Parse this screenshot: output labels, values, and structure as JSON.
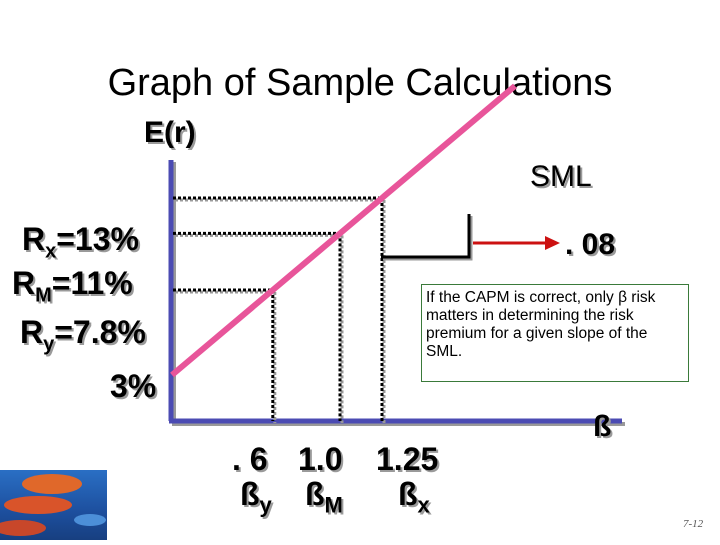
{
  "title": "Graph of Sample Calculations",
  "chart_data": {
    "type": "line",
    "title": "Graph of Sample Calculations",
    "ylabel": "E(r)",
    "xlabel": "ß",
    "series": [
      {
        "name": "SML",
        "x": [
          0,
          1.25
        ],
        "y": [
          3,
          13
        ]
      }
    ],
    "points": [
      {
        "label": "ßy",
        "beta": 0.6,
        "return_label": "Ry=7.8%",
        "return": 7.8
      },
      {
        "label": "ßM",
        "beta": 1.0,
        "return_label": "RM=11%",
        "return": 11
      },
      {
        "label": "ßx",
        "beta": 1.25,
        "return_label": "Rx=13%",
        "return": 13
      }
    ],
    "intercept_label": "3%",
    "slope_label": ". 08",
    "x_ticks": [
      ". 6",
      "1.0",
      "1.25"
    ],
    "line_color": "#e8559a",
    "axis_color": "#4b4bb3"
  },
  "labels": {
    "y_axis": "E(r)",
    "sml": "SML",
    "beta_axis": "ß",
    "slope": ". 08",
    "intercept": "3%",
    "rx_main": "R",
    "rx_sub": "x",
    "rx_val": "=13%",
    "rm_main": "R",
    "rm_sub": "M",
    "rm_val": "=11%",
    "ry_main": "R",
    "ry_sub": "y",
    "ry_val": "=7.8%",
    "tick_6": ". 6",
    "tick_10": "1.0",
    "tick_125": "1.25",
    "by_main": "ß",
    "by_sub": "y",
    "bm_main": "ß",
    "bm_sub": "M",
    "bx_main": "ß",
    "bx_sub": "x"
  },
  "note": "If the CAPM is correct, only β risk matters in determining the risk premium for a given slope of the SML.",
  "page_number": "7-12"
}
